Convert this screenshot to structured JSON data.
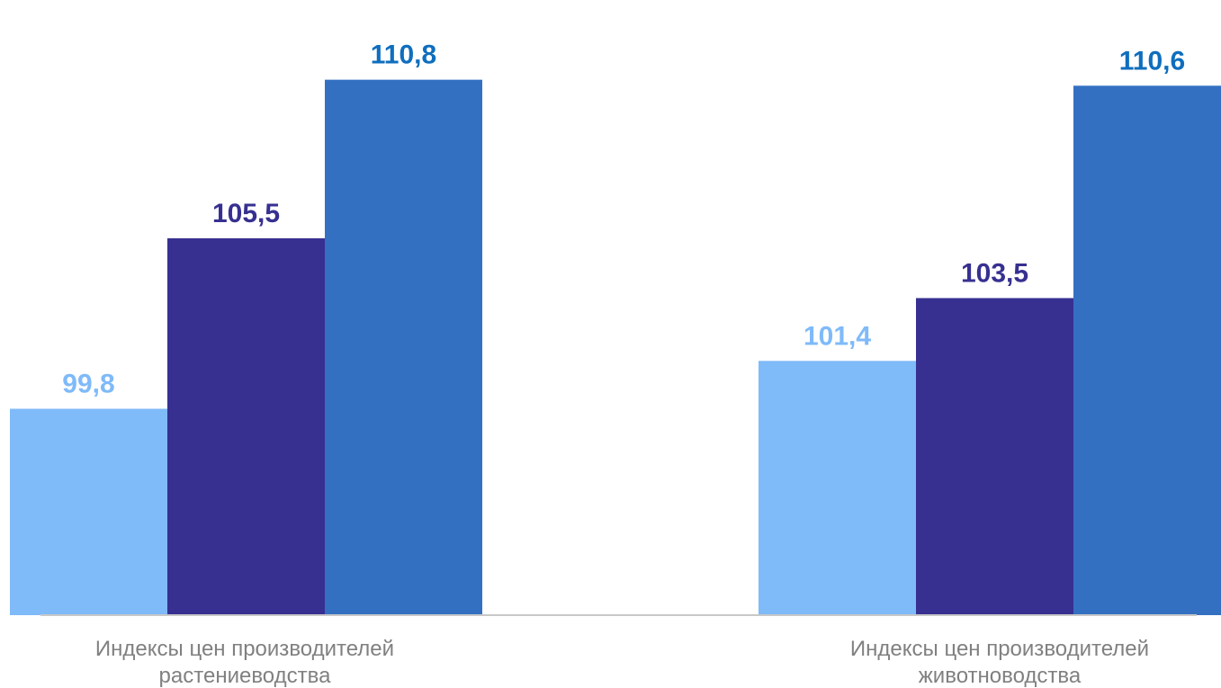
{
  "chart_data": {
    "type": "bar",
    "title": "",
    "xlabel": "",
    "ylabel": "",
    "grid": false,
    "categories": [
      [
        "Индексы цен производителей",
        "растениеводства"
      ],
      [
        "Индексы цен производителей",
        "животноводства"
      ]
    ],
    "series": [
      {
        "values": [
          99.8,
          101.4
        ],
        "labels": [
          "99,8",
          "101,4"
        ],
        "color": "#7fbaf9",
        "label_color": "#7fbaf9"
      },
      {
        "values": [
          105.5,
          103.5
        ],
        "labels": [
          "105,5",
          "103,5"
        ],
        "color": "#373091",
        "label_color": "#373091"
      },
      {
        "values": [
          110.8,
          110.6
        ],
        "labels": [
          "110,8",
          "110,6"
        ],
        "color": "#3470c2",
        "label_color": "#0f6ebe"
      }
    ],
    "ylim": [
      92.9,
      111.5
    ]
  }
}
